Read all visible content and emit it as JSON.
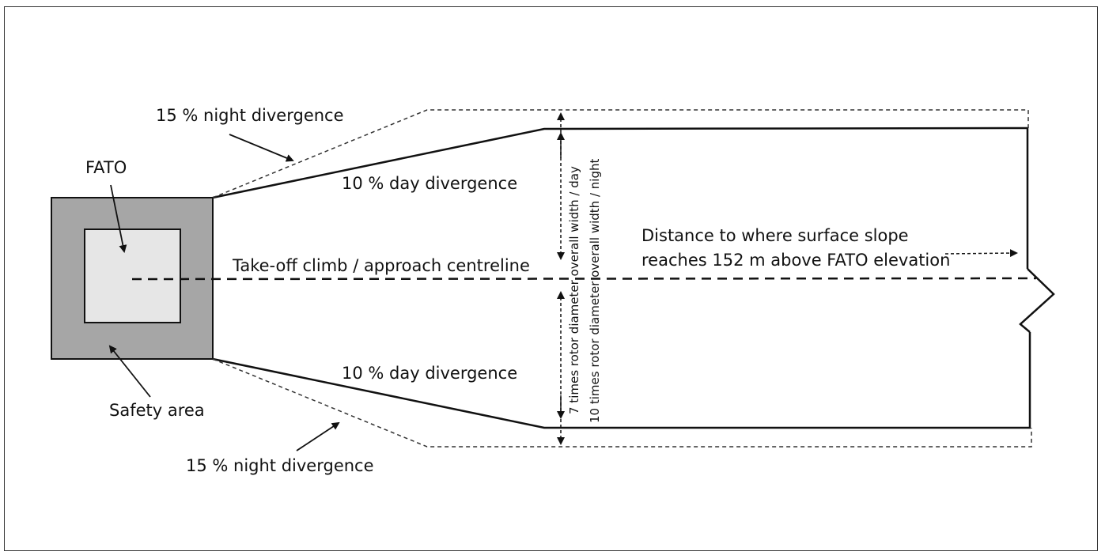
{
  "labels": {
    "fato": "FATO",
    "safety_area": "Safety area",
    "night_div_top": "15 % night divergence",
    "night_div_bottom": "15 % night divergence",
    "day_div_top": "10 % day divergence",
    "day_div_bottom": "10 % day divergence",
    "centreline": "Take-off climb / approach centreline",
    "distance_line1": "Distance to where surface slope",
    "distance_line2": "reaches 152 m above FATO elevation",
    "width_day": "7 times rotor diameter overall width / day",
    "width_night": "10 times rotor diameter overall  width / night"
  },
  "colors": {
    "safety_area": "#a6a6a6",
    "fato": "#e6e6e6",
    "line": "#111111"
  }
}
